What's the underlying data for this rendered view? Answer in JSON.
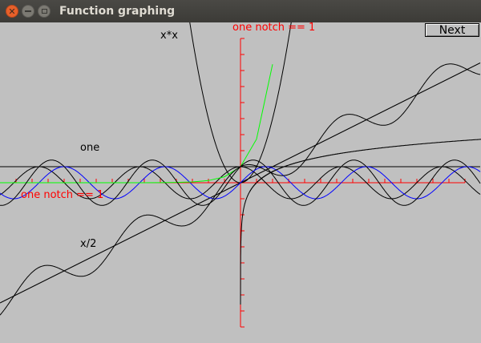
{
  "window": {
    "title": "Function graphing",
    "controls": {
      "close_icon": "close-icon",
      "minimize_icon": "minimize-icon",
      "maximize_icon": "maximize-icon"
    }
  },
  "next_button": {
    "label": "Next"
  },
  "labels": {
    "xx": "x*x",
    "one": "one",
    "x_half": "x/2",
    "notch_y": "one notch == 1",
    "notch_x": "one notch == 1"
  },
  "colors": {
    "background": "#c0c0c0",
    "axes": "#ff0000",
    "axis_labels": "#ff0000",
    "function_black": "#000000",
    "function_sin": "#0000ff",
    "function_exp": "#00ff00"
  },
  "chart_data": {
    "type": "line",
    "x_axis": {
      "notch": 1,
      "notch_count_each_side": 14
    },
    "y_axis": {
      "notch": 1,
      "notch_count_each_side": 9
    },
    "functions": [
      {
        "expr": "one",
        "color": "#000000",
        "label": "one"
      },
      {
        "expr": "x/2",
        "color": "#000000",
        "label": "x/2"
      },
      {
        "expr": "x*x",
        "color": "#000000",
        "label": "x*x"
      },
      {
        "expr": "cos",
        "color": "#000000"
      },
      {
        "expr": "sin",
        "color": "#0000ff"
      },
      {
        "expr": "exp",
        "color": "#00ff00"
      },
      {
        "expr": "log",
        "color": "#000000"
      },
      {
        "expr": "sin+cos",
        "color": "#000000"
      },
      {
        "expr": "x/2+cos",
        "color": "#000000"
      }
    ]
  }
}
